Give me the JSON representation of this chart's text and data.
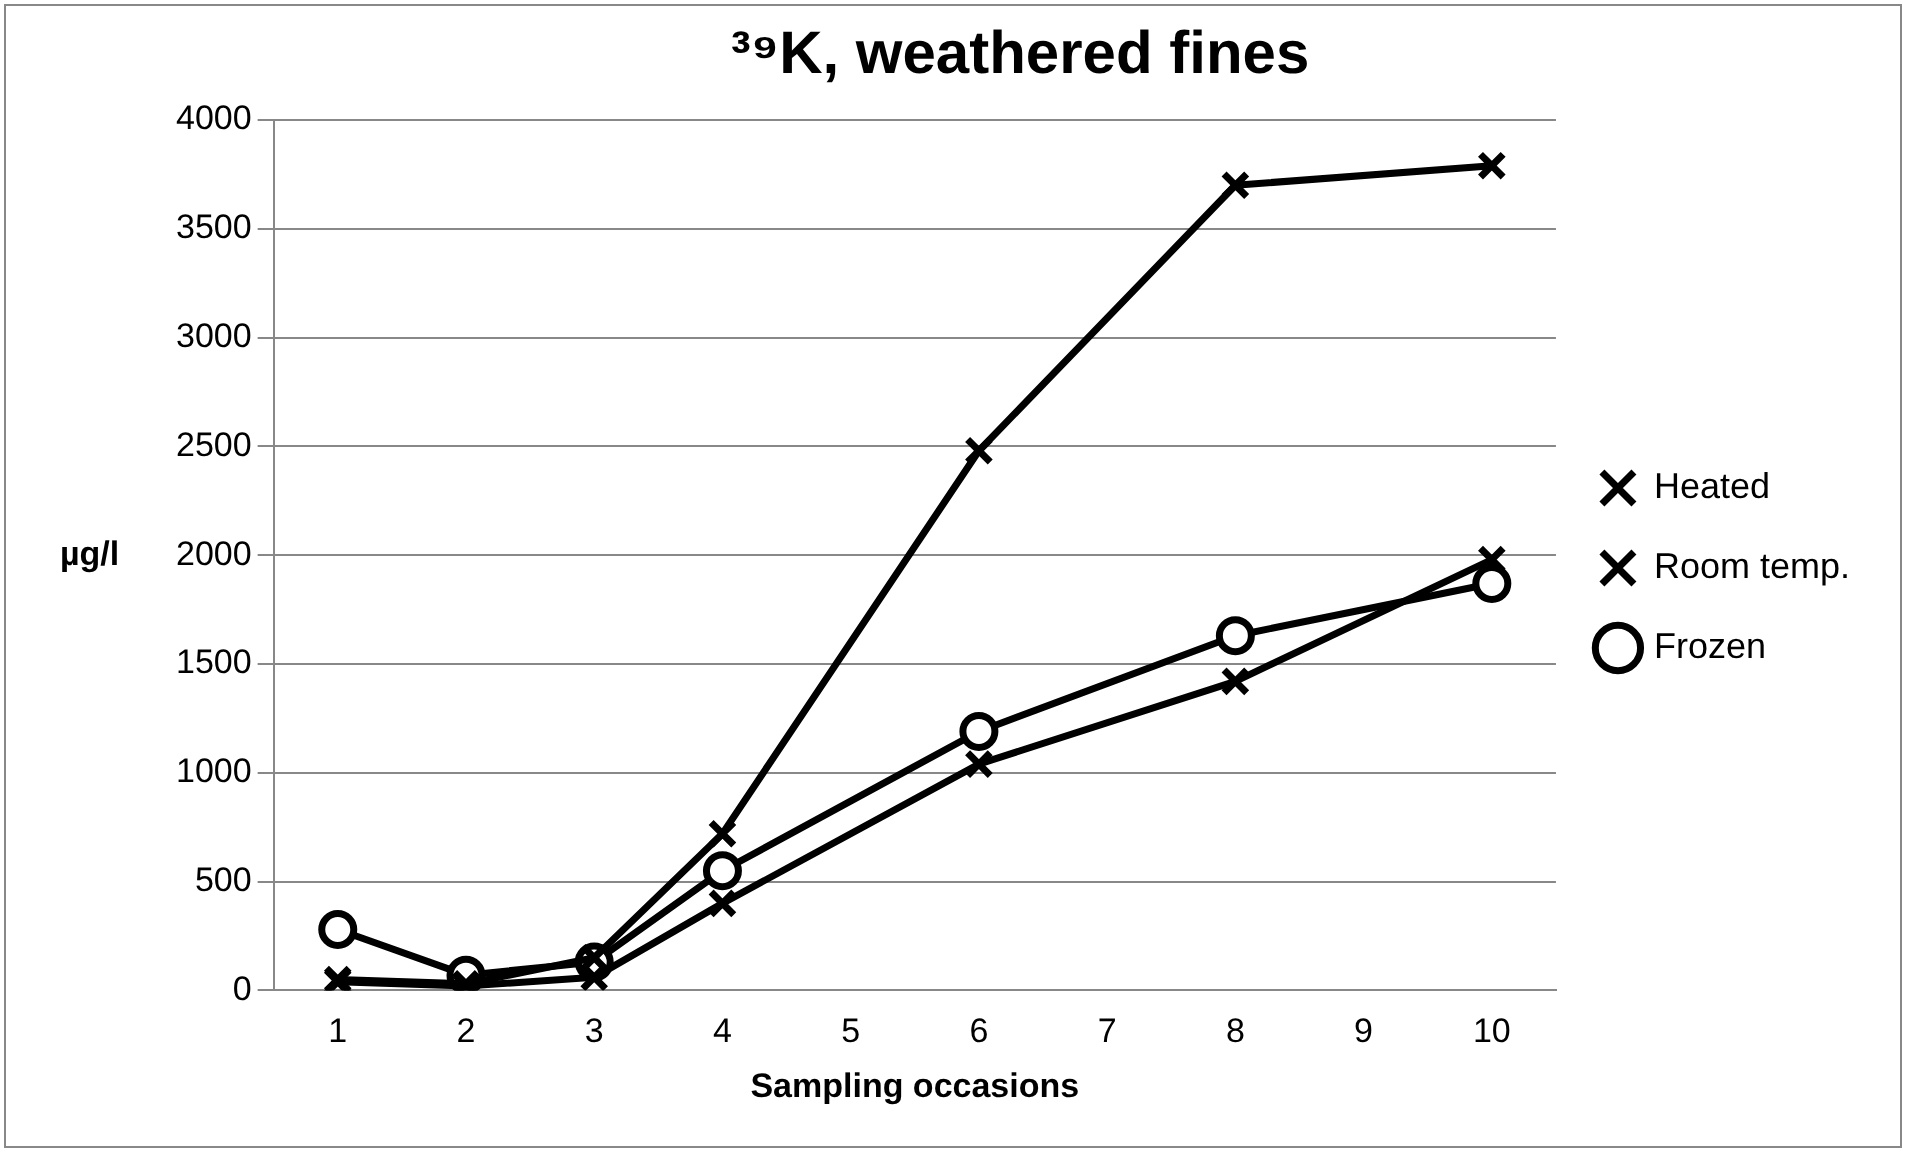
{
  "chart_data": {
    "type": "line",
    "title": "³⁹K, weathered fines",
    "xlabel": "Sampling occasions",
    "ylabel": "µg/l",
    "x": [
      1,
      2,
      3,
      4,
      6,
      8,
      10
    ],
    "series": [
      {
        "name": "Heated",
        "color": "#000000",
        "marker": "cross",
        "values": [
          50,
          30,
          150,
          720,
          2480,
          3700,
          3790
        ]
      },
      {
        "name": "Room temp.",
        "color": "#000000",
        "marker": "cross",
        "values": [
          40,
          20,
          60,
          400,
          1040,
          1420,
          1980
        ]
      },
      {
        "name": "Frozen",
        "color": "#000000",
        "marker": "circle",
        "values": [
          280,
          70,
          130,
          550,
          1190,
          1630,
          1870
        ]
      }
    ],
    "xlim": [
      0.5,
      10.5
    ],
    "xticks": [
      1,
      2,
      3,
      4,
      5,
      6,
      7,
      8,
      9,
      10
    ],
    "ylim": [
      0,
      4000
    ],
    "yticks": [
      0,
      500,
      1000,
      1500,
      2000,
      2500,
      3000,
      3500,
      4000
    ],
    "grid": "y",
    "legend": "right",
    "line_style": "solid"
  }
}
